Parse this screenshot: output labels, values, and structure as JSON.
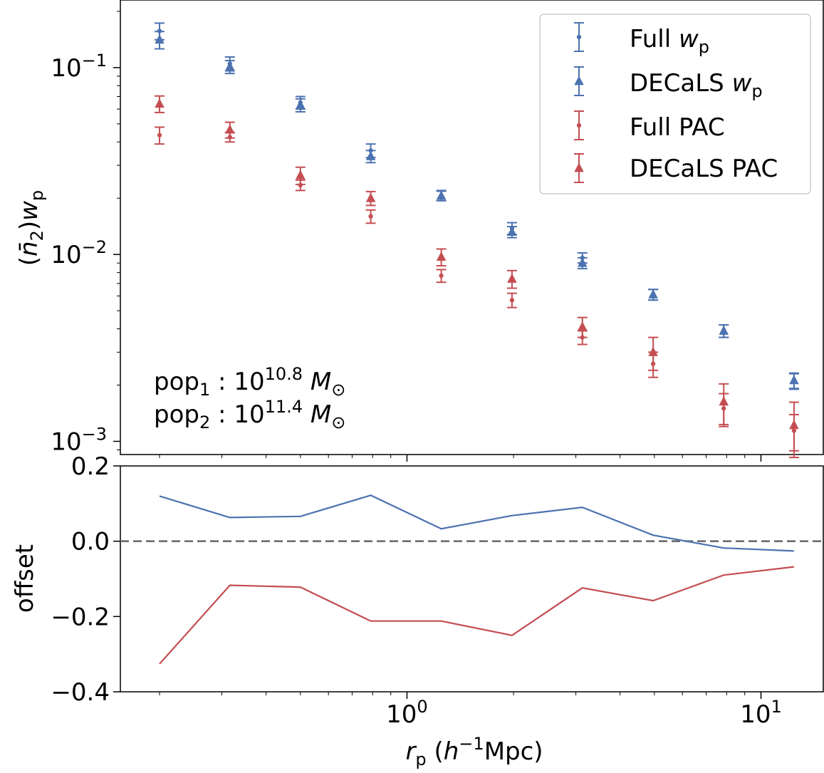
{
  "colors": {
    "blue": "#4c72b0",
    "red": "#c44e52",
    "zero_line": "#666666",
    "legend_border": "#cccccc"
  },
  "chart_data": [
    {
      "panel": "top",
      "type": "scatter",
      "xscale": "log",
      "yscale": "log",
      "xlim": [
        0.155,
        15
      ],
      "ylim": [
        0.00085,
        0.23
      ],
      "grid": false,
      "ylabel": "(n̄₂)w_p",
      "ylabel_parts": {
        "open": "(",
        "n": "n",
        "bar": "̄",
        "sub": "2",
        "close": ")",
        "w": "w",
        "p": "p"
      },
      "yticks": [
        {
          "value": 0.1,
          "base": "10",
          "exp": "−1"
        },
        {
          "value": 0.01,
          "base": "10",
          "exp": "−2"
        },
        {
          "value": 0.001,
          "base": "10",
          "exp": "−3"
        }
      ],
      "legend": {
        "position": "top-right",
        "entries": [
          {
            "marker": "circle",
            "color": "blue",
            "text": "Full ",
            "math": "w",
            "sub": "p"
          },
          {
            "marker": "triangle",
            "color": "blue",
            "text": "DECaLS ",
            "math": "w",
            "sub": "p"
          },
          {
            "marker": "circle",
            "color": "red",
            "text": "Full PAC",
            "math": "",
            "sub": ""
          },
          {
            "marker": "triangle",
            "color": "red",
            "text": "DECaLS PAC",
            "math": "",
            "sub": ""
          }
        ]
      },
      "annotations": [
        {
          "pre": "pop",
          "sub": "1",
          "colon": " : ",
          "base": "10",
          "exp": "10.8",
          "m": "M",
          "msub": "⊙"
        },
        {
          "pre": "pop",
          "sub": "2",
          "colon": " : ",
          "base": "10",
          "exp": "11.4",
          "m": "M",
          "msub": "⊙"
        }
      ],
      "x": [
        0.2,
        0.316,
        0.5,
        0.79,
        1.25,
        1.98,
        3.13,
        4.96,
        7.85,
        12.4
      ],
      "series": [
        {
          "name": "Full w_p",
          "marker": "circle",
          "color": "blue",
          "y": [
            0.157,
            0.105,
            0.065,
            0.036,
            0.0207,
            0.0138,
            0.0096,
            0.0061,
            0.0039,
            0.0021
          ],
          "err": [
            0.016,
            0.009,
            0.005,
            0.003,
            0.0013,
            0.001,
            0.0006,
            0.0004,
            0.0003,
            0.0002
          ]
        },
        {
          "name": "DECaLS w_p",
          "marker": "triangle",
          "color": "blue",
          "y": [
            0.141,
            0.101,
            0.063,
            0.0335,
            0.0206,
            0.0132,
            0.009,
            0.0061,
            0.0039,
            0.00212
          ],
          "err": [
            0.015,
            0.008,
            0.005,
            0.0025,
            0.0012,
            0.0009,
            0.0006,
            0.0004,
            0.0003,
            0.0002
          ]
        },
        {
          "name": "Full PAC",
          "marker": "circle",
          "color": "red",
          "y": [
            0.0435,
            0.0425,
            0.0235,
            0.016,
            0.0077,
            0.0057,
            0.0036,
            0.0026,
            0.0015,
            0.00114
          ],
          "err": [
            0.0045,
            0.0025,
            0.0015,
            0.0013,
            0.0006,
            0.0005,
            0.0003,
            0.0004,
            0.0003,
            0.00025
          ]
        },
        {
          "name": "DECaLS PAC",
          "marker": "triangle",
          "color": "red",
          "y": [
            0.064,
            0.0465,
            0.0265,
            0.02,
            0.0097,
            0.0074,
            0.0041,
            0.003,
            0.00163,
            0.00122
          ],
          "err": [
            0.0065,
            0.0045,
            0.0028,
            0.0017,
            0.001,
            0.0008,
            0.0005,
            0.0006,
            0.0004,
            0.0004
          ]
        }
      ]
    },
    {
      "panel": "bottom",
      "type": "line",
      "xscale": "log",
      "xlim": [
        0.155,
        15
      ],
      "ylim": [
        -0.4,
        0.2
      ],
      "grid": false,
      "ylabel": "offset",
      "xlabel": "r_p (h^-1 Mpc)",
      "xlabel_parts": {
        "r": "r",
        "sub": "p",
        "open": " (",
        "h": "h",
        "exp": "−1",
        "unit": "Mpc)"
      },
      "yticks": [
        {
          "value": 0.2,
          "label": "0.2"
        },
        {
          "value": 0.0,
          "label": "0.0"
        },
        {
          "value": -0.2,
          "label": "−0.2"
        },
        {
          "value": -0.4,
          "label": "−0.4"
        }
      ],
      "xticks": [
        {
          "value": 1,
          "base": "10",
          "exp": "0"
        },
        {
          "value": 10,
          "base": "10",
          "exp": "1"
        }
      ],
      "reference_line": {
        "y": 0.0,
        "style": "dashed"
      },
      "x": [
        0.2,
        0.316,
        0.5,
        0.79,
        1.25,
        1.98,
        3.13,
        4.96,
        7.85,
        12.4
      ],
      "series": [
        {
          "color": "blue",
          "values": [
            0.12,
            0.063,
            0.066,
            0.122,
            0.033,
            0.068,
            0.09,
            0.016,
            -0.018,
            -0.026
          ]
        },
        {
          "color": "red",
          "values": [
            -0.326,
            -0.117,
            -0.122,
            -0.212,
            -0.212,
            -0.25,
            -0.124,
            -0.158,
            -0.09,
            -0.068
          ]
        }
      ]
    }
  ]
}
